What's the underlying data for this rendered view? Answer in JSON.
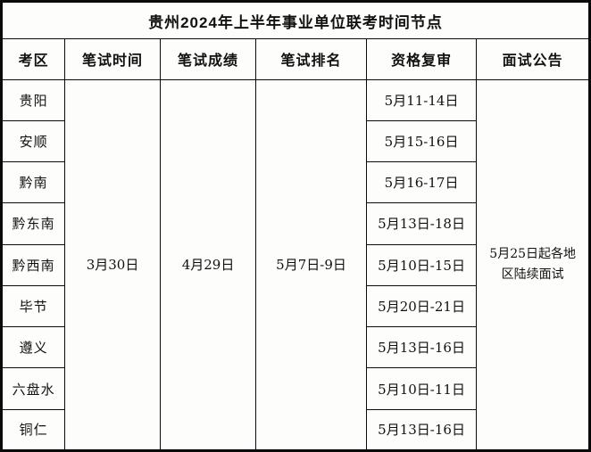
{
  "chart_data": {
    "type": "table",
    "title": "贵州2024年上半年事业单位联考时间节点",
    "columns": [
      "考区",
      "笔试时间",
      "笔试成绩",
      "笔试排名",
      "资格复审",
      "面试公告"
    ],
    "merged_values": {
      "written_exam_time": "3月30日",
      "score_release": "4月29日",
      "rank_release": "5月7日-9日",
      "interview_notice": "5月25日起各地区陆续面试"
    },
    "rows": [
      {
        "region": "贵阳",
        "qualification_review": "5月11-14日"
      },
      {
        "region": "安顺",
        "qualification_review": "5月15-16日"
      },
      {
        "region": "黔南",
        "qualification_review": "5月16-17日"
      },
      {
        "region": "黔东南",
        "qualification_review": "5月13日-18日"
      },
      {
        "region": "黔西南",
        "qualification_review": "5月10日-15日"
      },
      {
        "region": "毕节",
        "qualification_review": "5月20日-21日"
      },
      {
        "region": "遵义",
        "qualification_review": "5月13日-16日"
      },
      {
        "region": "六盘水",
        "qualification_review": "5月10日-11日"
      },
      {
        "region": "铜仁",
        "qualification_review": "5月13日-16日"
      }
    ],
    "colors": {
      "border": "#0a0a0a",
      "background": "#fdfdfb",
      "text": "#111111"
    }
  }
}
